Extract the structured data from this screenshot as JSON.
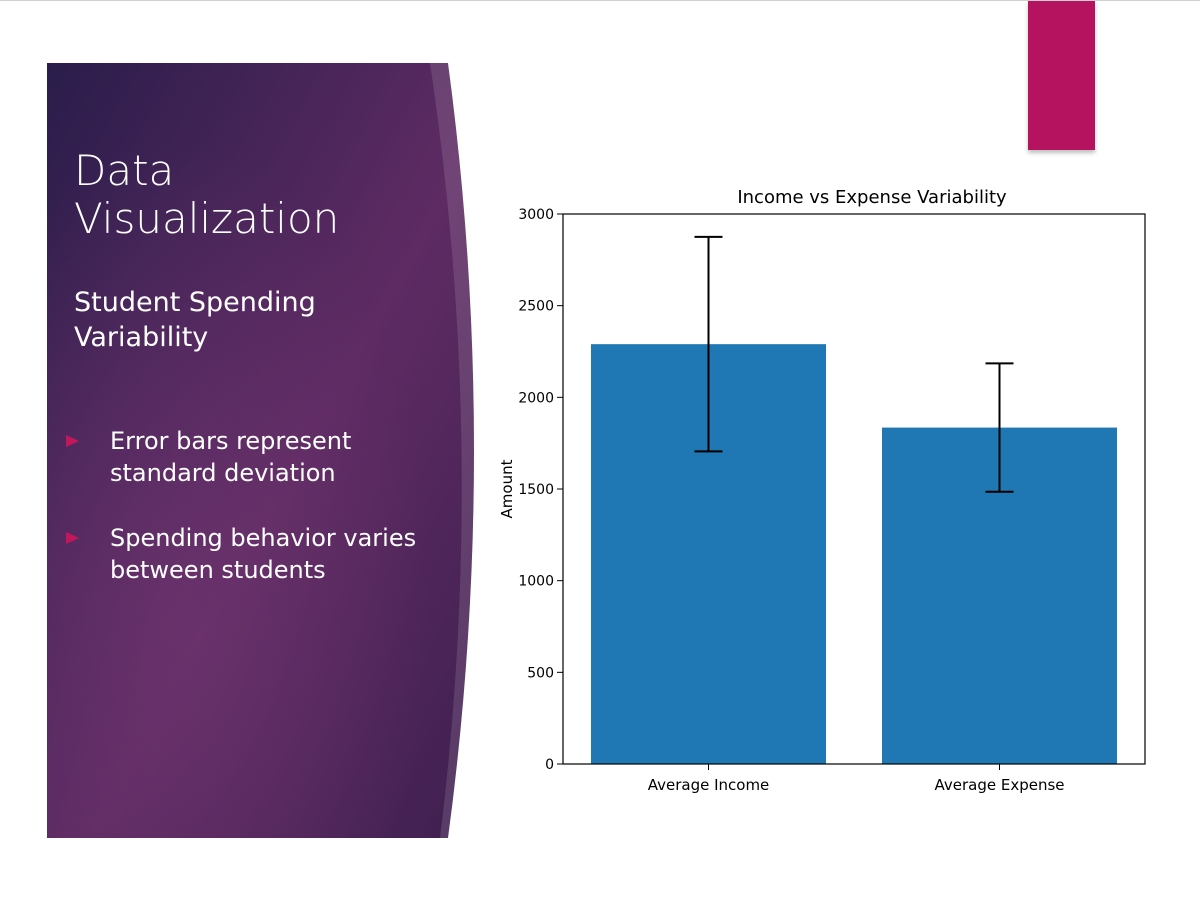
{
  "slide": {
    "title": "Data\nVisualization",
    "subtitle": "Student Spending Variability",
    "bullets": [
      {
        "text": "Error bars represent standard deviation"
      },
      {
        "text": "Spending behavior varies between students"
      }
    ],
    "colors": {
      "panel_dark": "#2e1f4e",
      "panel_mid": "#5e2b63",
      "accent": "#b5135f",
      "bullet": "#c2185b"
    }
  },
  "chart_data": {
    "type": "bar",
    "title": "Income vs Expense Variability",
    "ylabel": "Amount",
    "xlabel": "",
    "categories": [
      "Average Income",
      "Average Expense"
    ],
    "values": [
      2290,
      1835
    ],
    "error": [
      585,
      350
    ],
    "ylim": [
      0,
      3000
    ],
    "yticks": [
      0,
      500,
      1000,
      1500,
      2000,
      2500,
      3000
    ],
    "bar_color": "#1f77b4",
    "grid": false
  }
}
